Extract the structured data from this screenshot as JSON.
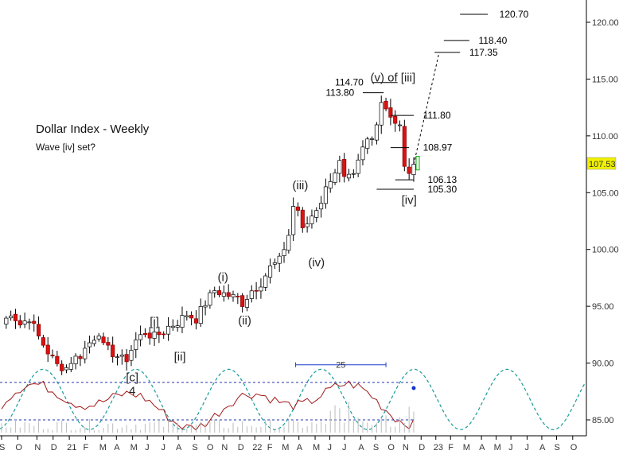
{
  "chart_data": {
    "type": "candlestick",
    "title": "Dollar Index - Weekly",
    "subtitle": "Wave [iv] set?",
    "ylim": [
      83.5,
      121.5
    ],
    "yticks": [
      "85.00",
      "90.00",
      "95.00",
      "100.00",
      "105.00",
      "110.00",
      "115.00",
      "120.00"
    ],
    "x_labels": [
      "S",
      "O",
      "N",
      "D",
      "21",
      "F",
      "M",
      "A",
      "M",
      "J",
      "J",
      "A",
      "S",
      "O",
      "N",
      "D",
      "22",
      "F",
      "M",
      "A",
      "M",
      "J",
      "J",
      "A",
      "S",
      "O",
      "N",
      "D",
      "23",
      "F",
      "M",
      "A",
      "M",
      "J",
      "J",
      "A",
      "S",
      "O",
      "N"
    ],
    "last_price": "107.53",
    "price_path": [
      [
        0,
        93.3
      ],
      [
        2,
        94.5
      ],
      [
        4,
        93.4
      ],
      [
        6,
        94.0
      ],
      [
        8,
        92.3
      ],
      [
        10,
        91.0
      ],
      [
        12,
        89.8
      ],
      [
        14,
        89.6
      ],
      [
        15,
        90.2
      ],
      [
        17,
        90.7
      ],
      [
        19,
        91.8
      ],
      [
        21,
        92.8
      ],
      [
        22,
        91.4
      ],
      [
        24,
        90.9
      ],
      [
        26,
        90.3
      ],
      [
        27,
        90.4
      ],
      [
        29,
        92.0
      ],
      [
        31,
        92.7
      ],
      [
        33,
        92.3
      ],
      [
        35,
        92.8
      ],
      [
        36,
        93.2
      ],
      [
        38,
        93.6
      ],
      [
        40,
        94.3
      ],
      [
        42,
        93.9
      ],
      [
        44,
        95.3
      ],
      [
        46,
        96.4
      ],
      [
        48,
        96.1
      ],
      [
        50,
        95.8
      ],
      [
        51,
        95.7
      ],
      [
        52,
        95.3
      ],
      [
        54,
        96.4
      ],
      [
        56,
        97.1
      ],
      [
        58,
        98.4
      ],
      [
        60,
        99.0
      ],
      [
        62,
        101.3
      ],
      [
        63,
        103.8
      ],
      [
        64,
        103.5
      ],
      [
        65,
        101.6
      ],
      [
        67,
        103.0
      ],
      [
        69,
        104.3
      ],
      [
        71,
        106.3
      ],
      [
        73,
        107.6
      ],
      [
        74,
        106.1
      ],
      [
        76,
        106.3
      ],
      [
        78,
        108.8
      ],
      [
        79,
        109.6
      ],
      [
        80,
        109.7
      ],
      [
        82,
        113.1
      ],
      [
        83,
        112.5
      ],
      [
        84,
        111.9
      ],
      [
        85,
        111.2
      ],
      [
        86,
        110.8
      ],
      [
        87,
        107.1
      ],
      [
        88,
        106.9
      ],
      [
        89,
        107.5
      ]
    ],
    "wave_labels": [
      {
        "text": "(v) of [iii]",
        "x": 84.5,
        "y": 114.8
      },
      {
        "text": "(iii)",
        "x": 64.5,
        "y": 105.3
      },
      {
        "text": "(iv)",
        "x": 68.0,
        "y": 98.5
      },
      {
        "text": "(i)",
        "x": 47.8,
        "y": 97.2
      },
      {
        "text": "(ii)",
        "x": 52.5,
        "y": 93.4
      },
      {
        "text": "[i]",
        "x": 33.0,
        "y": 93.3
      },
      {
        "text": "[ii]",
        "x": 38.5,
        "y": 90.2
      },
      {
        "text": "[iv]",
        "x": 88.0,
        "y": 104.0
      },
      {
        "text": "[c]",
        "x": 28.2,
        "y": 88.4
      },
      {
        "text": "4",
        "x": 28.2,
        "y": 87.2
      }
    ],
    "price_levels": [
      {
        "label": "120.70",
        "value": 120.7,
        "x0": 99.0,
        "x1": 105.0,
        "label_x": 107.5
      },
      {
        "label": "118.40",
        "value": 118.4,
        "x0": 95.5,
        "x1": 101.0,
        "label_x": 103.0
      },
      {
        "label": "117.35",
        "value": 117.35,
        "x0": 93.5,
        "x1": 99.0,
        "label_x": 101.0
      },
      {
        "label": "114.70",
        "value": 114.7,
        "x0": 80.0,
        "x1": 85.5,
        "label_x": 72.0
      },
      {
        "label": "113.80",
        "value": 113.8,
        "x0": 78.0,
        "x1": 82.5,
        "label_x": 70.0
      },
      {
        "label": "111.80",
        "value": 111.8,
        "x0": 84.0,
        "x1": 89.0,
        "label_x": 91.0
      },
      {
        "label": "108.97",
        "value": 108.97,
        "x0": 84.0,
        "x1": 88.0,
        "label_x": 91.0
      },
      {
        "label": "106.13",
        "value": 106.13,
        "x0": 85.0,
        "x1": 89.0,
        "label_x": 92.0
      },
      {
        "label": "105.30",
        "value": 105.3,
        "x0": 81.0,
        "x1": 89.0,
        "label_x": 92.0
      }
    ],
    "projection": [
      [
        89,
        107.5
      ],
      [
        94.5,
        117.35
      ]
    ],
    "cycle_label": "25",
    "cycle_span": [
      63.5,
      83.0
    ],
    "oscillator_levels": [
      88.3,
      85.0
    ]
  }
}
